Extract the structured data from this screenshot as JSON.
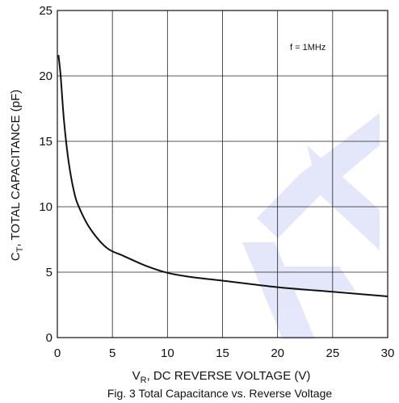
{
  "chart_data": {
    "type": "line",
    "caption": "Fig. 3  Total Capacitance vs. Reverse Voltage",
    "xlabel_main": "V",
    "xlabel_sub": "R",
    "xlabel_rest": ", DC REVERSE VOLTAGE (V)",
    "ylabel_main": "C",
    "ylabel_sub": "T",
    "ylabel_rest": ", TOTAL CAPACITANCE (pF)",
    "annotation": "f = 1MHz",
    "xlim": [
      0,
      30
    ],
    "ylim": [
      0,
      25
    ],
    "x_ticks": [
      "0",
      "5",
      "10",
      "15",
      "20",
      "25",
      "30"
    ],
    "y_ticks": [
      "0",
      "5",
      "10",
      "15",
      "20",
      "25"
    ],
    "grid": true,
    "line_color": "#111111",
    "watermark_color": "#2e4fd6",
    "series": [
      {
        "x": [
          0.1,
          0.3,
          0.6,
          1.0,
          1.5,
          2.0,
          3.0,
          4.5,
          6.0,
          8.0,
          10.0,
          12.0,
          15.0,
          20.0,
          25.0,
          30.0
        ],
        "y": [
          21.6,
          20.0,
          16.6,
          13.6,
          11.2,
          9.9,
          8.3,
          6.85,
          6.25,
          5.5,
          4.95,
          4.65,
          4.35,
          3.85,
          3.5,
          3.15
        ]
      }
    ]
  }
}
